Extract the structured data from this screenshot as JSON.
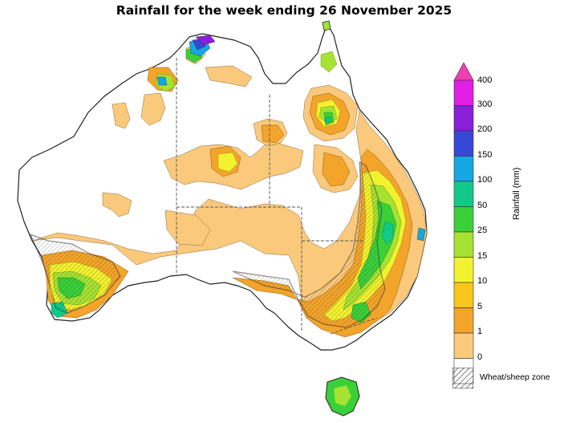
{
  "title": "Rainfall for the week ending 26 November 2025",
  "legend": {
    "axis_label": "Rainfall (mm)",
    "ticks": [
      "400",
      "300",
      "200",
      "150",
      "100",
      "50",
      "25",
      "15",
      "10",
      "5",
      "1",
      "0"
    ],
    "colors": [
      "#ef3fb2",
      "#e01ee6",
      "#8a1fd8",
      "#3848d6",
      "#16a6e3",
      "#12c98a",
      "#3ad03a",
      "#a6e232",
      "#f2f230",
      "#f9c61c",
      "#f3a42a",
      "#fbc97c",
      "#ffffff"
    ],
    "hatch_label": "Wheat/sheep zone"
  },
  "map": {
    "region": "Australia",
    "colors": {
      "ocean": "#ffffff",
      "land_dry": "#ffffff",
      "r1_5": "#fbc97c",
      "r5_10": "#f3a42a",
      "r10_15": "#f2f230",
      "r15_25": "#a6e232",
      "r25_50": "#3ad03a",
      "r50_100": "#12c98a",
      "r100_150": "#16a6e3",
      "r150_200": "#3848d6",
      "r200_300": "#8a1fd8",
      "r300_400": "#e01ee6",
      "border": "#222222",
      "state_line": "#555555"
    }
  }
}
